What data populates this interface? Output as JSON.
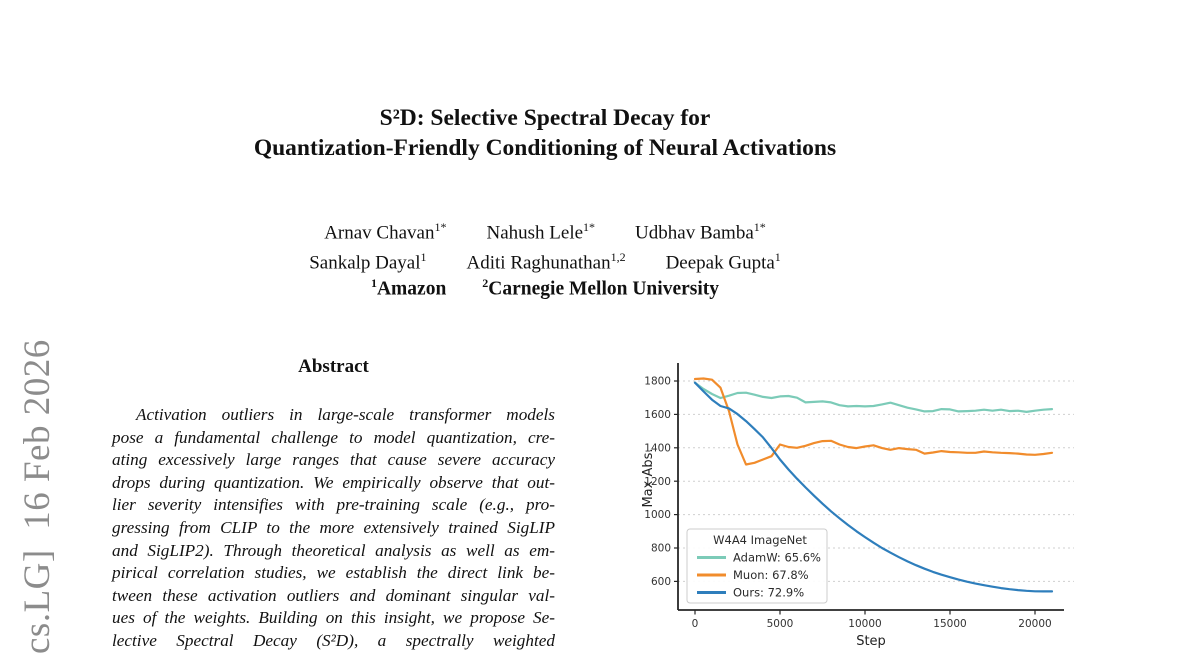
{
  "page": {
    "background": "#ffffff"
  },
  "watermark": {
    "text": "cs.LG]  16 Feb 2026",
    "color": "#8c8c8c"
  },
  "title": {
    "line1": "S²D: Selective Spectral Decay for",
    "line2": "Quantization-Friendly Conditioning of Neural Activations"
  },
  "authors": {
    "rows": [
      [
        {
          "name": "Arnav Chavan",
          "sup": "1*"
        },
        {
          "name": "Nahush Lele",
          "sup": "1*"
        },
        {
          "name": "Udbhav Bamba",
          "sup": "1*"
        }
      ],
      [
        {
          "name": "Sankalp Dayal",
          "sup": "1"
        },
        {
          "name": "Aditi Raghunathan",
          "sup": "1,2"
        },
        {
          "name": "Deepak Gupta",
          "sup": "1"
        }
      ]
    ],
    "affiliations": [
      {
        "sup": "1",
        "name": "Amazon"
      },
      {
        "sup": "2",
        "name": "Carnegie Mellon University"
      }
    ]
  },
  "abstract": {
    "heading": "Abstract",
    "lines": [
      "Activation outliers in large-scale transformer models",
      "pose a fundamental challenge to model quantization, cre-",
      "ating excessively large ranges that cause severe accuracy",
      "drops during quantization. We empirically observe that out-",
      "lier severity intensifies with pre-training scale (e.g., pro-",
      "gressing from CLIP to the more extensively trained SigLIP",
      "and SigLIP2). Through theoretical analysis as well as em-",
      "pirical correlation studies, we establish the direct link be-",
      "tween these activation outliers and dominant singular val-",
      "ues of the weights. Building on this insight, we propose Se-",
      "lective Spectral Decay (S²D), a spectrally weighted"
    ]
  },
  "chart_data": {
    "type": "line",
    "title": "",
    "xlabel": "Step",
    "ylabel": "Max Abs.",
    "xlim": [
      -1000,
      22300
    ],
    "ylim": [
      429,
      1908
    ],
    "xticks": [
      0,
      5000,
      10000,
      15000,
      20000
    ],
    "yticks": [
      600,
      800,
      1000,
      1200,
      1400,
      1600,
      1800
    ],
    "grid": "horizontal-dashed",
    "grid_color": "#cfcfcf",
    "axis_color": "#262626",
    "legend": {
      "title": "W4A4 ImageNet",
      "position": "lower-left",
      "entries": [
        "AdamW: 65.6%",
        "Muon: 67.8%",
        "Ours: 72.9%"
      ]
    },
    "x": [
      0,
      500,
      1000,
      1500,
      2000,
      2500,
      3000,
      3500,
      4000,
      4500,
      5000,
      5500,
      6000,
      6500,
      7000,
      7500,
      8000,
      8500,
      9000,
      9500,
      10000,
      10500,
      11000,
      11500,
      12000,
      12500,
      13000,
      13500,
      14000,
      14500,
      15000,
      15500,
      16000,
      16500,
      17000,
      17500,
      18000,
      18500,
      19000,
      19500,
      20000,
      20500,
      21000
    ],
    "series": [
      {
        "name": "AdamW: 65.6%",
        "color": "#7ccbb8",
        "values": [
          1790,
          1752,
          1722,
          1698,
          1712,
          1728,
          1730,
          1718,
          1705,
          1698,
          1708,
          1710,
          1700,
          1672,
          1675,
          1678,
          1672,
          1655,
          1648,
          1650,
          1648,
          1650,
          1660,
          1670,
          1655,
          1640,
          1630,
          1618,
          1620,
          1632,
          1630,
          1618,
          1620,
          1622,
          1628,
          1622,
          1628,
          1620,
          1622,
          1615,
          1622,
          1628,
          1632
        ]
      },
      {
        "name": "Muon: 67.8%",
        "color": "#f18c2c",
        "values": [
          1812,
          1815,
          1808,
          1760,
          1620,
          1420,
          1300,
          1310,
          1330,
          1350,
          1420,
          1405,
          1400,
          1412,
          1428,
          1440,
          1442,
          1420,
          1405,
          1398,
          1408,
          1415,
          1398,
          1388,
          1398,
          1392,
          1388,
          1365,
          1372,
          1380,
          1375,
          1373,
          1370,
          1370,
          1378,
          1373,
          1370,
          1368,
          1365,
          1360,
          1358,
          1363,
          1370
        ]
      },
      {
        "name": "Ours: 72.9%",
        "color": "#2e7ebc",
        "values": [
          1790,
          1738,
          1688,
          1650,
          1636,
          1602,
          1560,
          1512,
          1462,
          1398,
          1330,
          1270,
          1215,
          1163,
          1113,
          1065,
          1020,
          978,
          938,
          900,
          865,
          832,
          800,
          772,
          745,
          720,
          697,
          676,
          657,
          640,
          625,
          611,
          598,
          587,
          577,
          568,
          560,
          553,
          548,
          544,
          541,
          540,
          540
        ]
      }
    ]
  }
}
